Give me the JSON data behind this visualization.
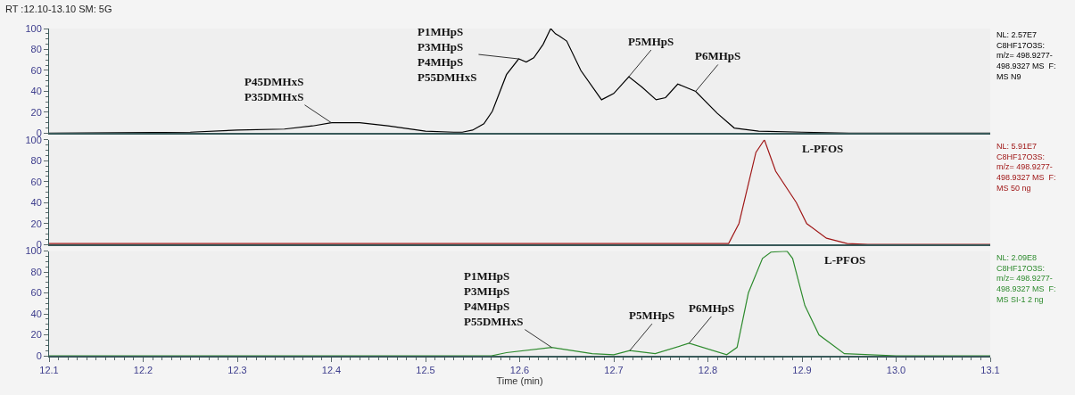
{
  "chart_data": [
    {
      "type": "line",
      "title": "RT :12.10-13.10 SM: 5G",
      "xlim": [
        12.1,
        13.1
      ],
      "ylim": [
        0,
        100
      ],
      "yticks": [
        0,
        20,
        40,
        60,
        80,
        100
      ],
      "tick_labels": "y",
      "grid": false,
      "series": [
        {
          "color": "#000000",
          "x": [
            12.1,
            12.25,
            12.3,
            12.35,
            12.38,
            12.4,
            12.43,
            12.46,
            12.5,
            12.53,
            12.539,
            12.55,
            12.562,
            12.571,
            12.586,
            12.599,
            12.607,
            12.615,
            12.625,
            12.633,
            12.638,
            12.642,
            12.65,
            12.665,
            12.687,
            12.7,
            12.716,
            12.73,
            12.745,
            12.755,
            12.768,
            12.787,
            12.81,
            12.828,
            12.854,
            12.9,
            12.95,
            13.1
          ],
          "values": [
            0,
            1,
            3,
            4,
            7,
            10,
            10,
            7,
            2,
            1,
            1,
            3,
            9,
            21,
            56,
            71,
            68,
            72,
            85,
            100,
            95,
            93,
            88,
            60,
            32,
            38,
            54,
            44,
            32,
            34,
            47,
            40,
            19,
            5,
            2,
            1,
            0,
            0
          ]
        }
      ],
      "annotations": [
        {
          "text": "P45DMHxS\nP35DMHxS",
          "x": 12.4,
          "y": 10
        },
        {
          "text": "P1MHpS\nP3MHpS\nP4MHpS\nP55DMHxS",
          "x": 12.599,
          "y": 71
        },
        {
          "text": "P5MHpS",
          "x": 12.716,
          "y": 54
        },
        {
          "text": "P6MHpS",
          "x": 12.787,
          "y": 40
        },
        "NL: 2.57E7\nC8HF17O3S:\nm/z= 498.9277-\n498.9327 MS  F:\nMS N9"
      ]
    },
    {
      "type": "line",
      "xlim": [
        12.1,
        13.1
      ],
      "ylim": [
        0,
        100
      ],
      "yticks": [
        0,
        20,
        40,
        60,
        80,
        100
      ],
      "tick_labels": "y",
      "grid": false,
      "series": [
        {
          "color": "#a01818",
          "x": [
            12.1,
            12.822,
            12.833,
            12.851,
            12.86,
            12.872,
            12.894,
            12.905,
            12.926,
            12.948,
            12.97,
            13.1
          ],
          "values": [
            1,
            1,
            20,
            88,
            100,
            70,
            40,
            20,
            6,
            1,
            0,
            0
          ]
        }
      ],
      "annotations": [
        "L-PFOS",
        "NL: 5.91E7\nC8HF17O3S:\nm/z= 498.9277-\n498.9327 MS  F:\nMS 50 ng"
      ]
    },
    {
      "type": "line",
      "xlabel": "Time (min)",
      "xlim": [
        12.1,
        13.1
      ],
      "xticks": [
        12.1,
        12.2,
        12.3,
        12.4,
        12.5,
        12.6,
        12.7,
        12.8,
        12.9,
        {
          "value": 13.0,
          "label": "13.0"
        },
        13.1
      ],
      "ylim": [
        0,
        100
      ],
      "yticks": [
        0,
        20,
        40,
        60,
        80,
        100
      ],
      "grid": false,
      "series": [
        {
          "color": "#2e8b2e",
          "x": [
            12.1,
            12.57,
            12.586,
            12.634,
            12.677,
            12.7,
            12.717,
            12.744,
            12.78,
            12.82,
            12.831,
            12.843,
            12.858,
            12.867,
            12.884,
            12.89,
            12.903,
            12.918,
            12.945,
            13.0,
            13.1
          ],
          "values": [
            0,
            0,
            3,
            8,
            2,
            1,
            5,
            2,
            12,
            1,
            8,
            60,
            93,
            99,
            100,
            93,
            48,
            20,
            2,
            0,
            0
          ]
        }
      ],
      "annotations": [
        {
          "text": "P1MHpS\nP3MHpS\nP4MHpS\nP55DMHxS",
          "x": 12.634,
          "y": 8
        },
        {
          "text": "P5MHpS",
          "x": 12.717,
          "y": 5
        },
        {
          "text": "P6MHpS",
          "x": 12.78,
          "y": 12
        },
        "L-PFOS",
        "NL: 2.09E8\nC8HF17O3S:\nm/z= 498.9277-\n498.9327 MS  F:\nMS SI-1 2 ng"
      ]
    }
  ]
}
